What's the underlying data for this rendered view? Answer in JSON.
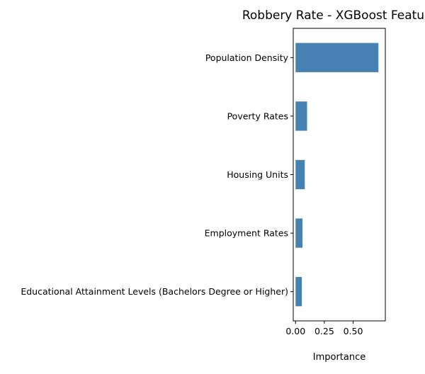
{
  "chart_data": {
    "type": "bar",
    "orientation": "horizontal",
    "title": "Robbery Rate - XGBoost Feature",
    "xlabel": "Importance",
    "ylabel": "",
    "categories": [
      "Population Density",
      "Poverty Rates",
      "Housing Units",
      "Employment Rates",
      "Educational Attainment Levels (Bachelors Degree or Higher)"
    ],
    "values": [
      0.72,
      0.1,
      0.08,
      0.06,
      0.055
    ],
    "xlim": [
      -0.02,
      0.78
    ],
    "xticks": [
      0.0,
      0.25,
      0.5
    ],
    "xtick_labels": [
      "0.00",
      "0.25",
      "0.50"
    ],
    "bar_color": "#4682b4",
    "grid": false,
    "legend": "none"
  }
}
